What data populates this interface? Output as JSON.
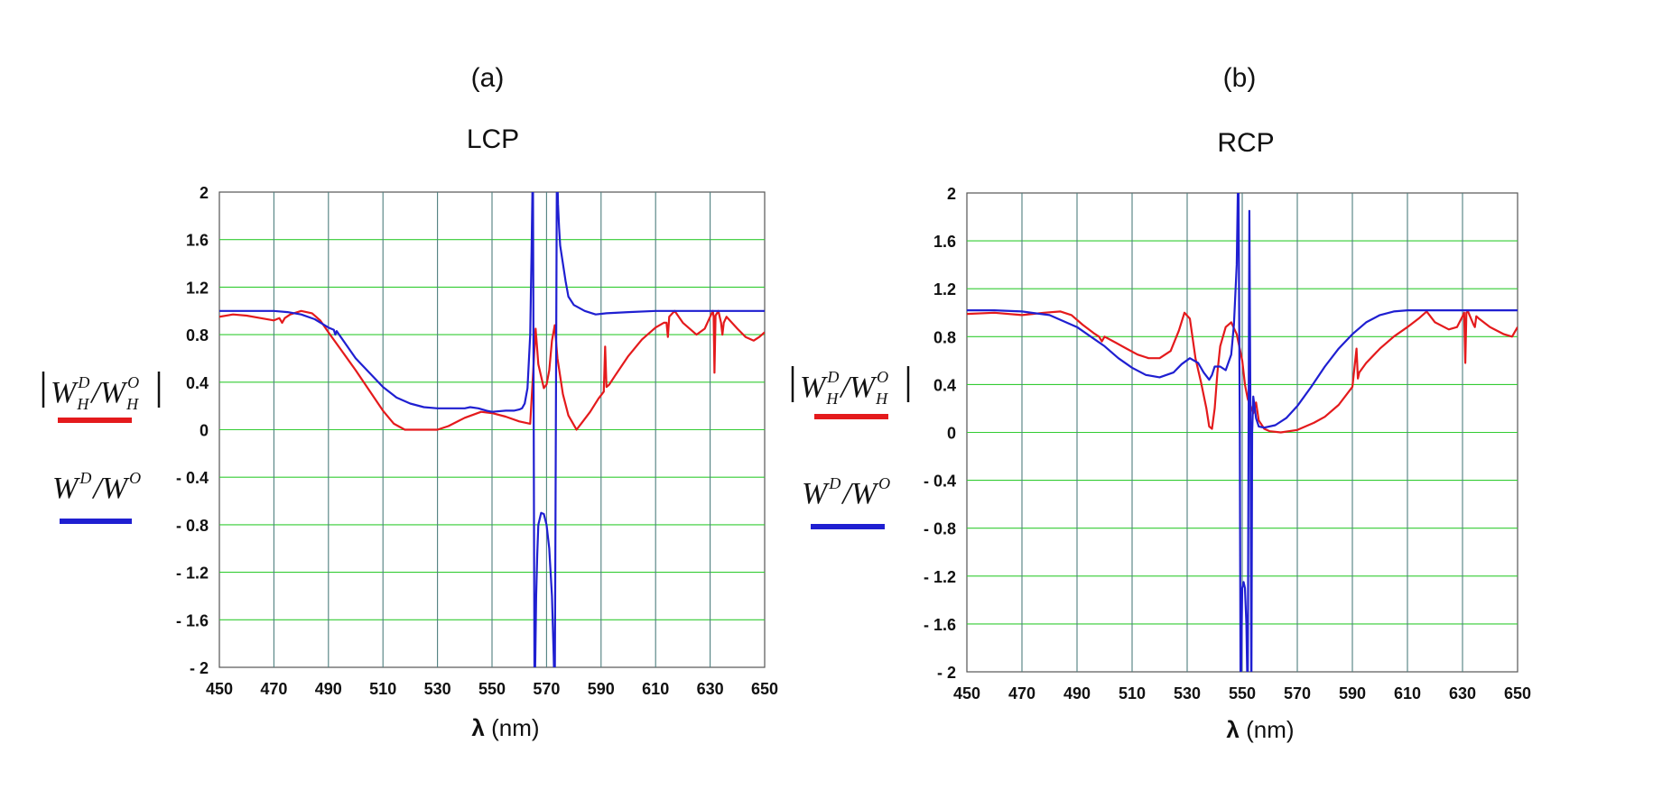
{
  "chart_data": [
    {
      "id": "a",
      "type": "line",
      "panel_label": "(a)",
      "title": "LCP",
      "xlabel_symbol": "λ",
      "xlabel_unit": "(nm)",
      "xlim": [
        450,
        650
      ],
      "ylim": [
        -2,
        2
      ],
      "xticks": [
        450,
        470,
        490,
        510,
        530,
        550,
        570,
        590,
        610,
        630,
        650
      ],
      "xtick_labels": [
        "450",
        "470",
        "490",
        "510",
        "530",
        "550",
        "570",
        "590",
        "610",
        "630",
        "650"
      ],
      "yticks": [
        2,
        1.6,
        1.2,
        0.8,
        0.4,
        0,
        -0.4,
        -0.8,
        -1.2,
        -1.6,
        -2
      ],
      "ytick_labels": [
        "2",
        "1.6",
        "1.2",
        "0.8",
        "0.4",
        "0",
        "- 0.4",
        "- 0.8",
        "- 1.2",
        "- 1.6",
        "- 2"
      ],
      "grid": true,
      "legend": [
        {
          "text": "|W_H^D/W_H^O|",
          "color": "#e41a1c",
          "series": "red"
        },
        {
          "text": "W^D/W^O",
          "color": "#1f1fd1",
          "series": "blue"
        }
      ],
      "series": [
        {
          "name": "|W_H^D/W_H^O|",
          "color": "#e41a1c",
          "x": [
            450,
            455,
            460,
            465,
            470,
            472,
            473,
            474,
            476,
            480,
            484,
            487,
            490,
            495,
            500,
            505,
            510,
            514,
            518,
            522,
            526,
            530,
            534,
            540,
            546,
            550,
            555,
            560,
            564,
            565,
            566,
            567,
            569,
            570,
            571,
            572,
            573,
            574,
            576,
            578,
            580,
            581,
            583,
            586,
            589,
            591,
            591.5,
            592,
            592.5,
            593,
            595,
            600,
            605,
            610,
            613,
            614,
            614.5,
            615,
            617,
            620,
            625,
            628,
            630,
            631,
            631.3,
            631.6,
            632,
            633,
            634,
            634.5,
            635,
            636,
            640,
            643,
            646,
            648,
            650
          ],
          "values": [
            0.95,
            0.97,
            0.96,
            0.94,
            0.92,
            0.94,
            0.9,
            0.94,
            0.97,
            1.0,
            0.98,
            0.92,
            0.82,
            0.66,
            0.5,
            0.33,
            0.16,
            0.05,
            0.0,
            0.0,
            0.0,
            0.0,
            0.03,
            0.1,
            0.15,
            0.14,
            0.11,
            0.07,
            0.05,
            0.45,
            0.85,
            0.55,
            0.35,
            0.38,
            0.5,
            0.75,
            0.88,
            0.6,
            0.3,
            0.12,
            0.04,
            0.0,
            0.06,
            0.15,
            0.26,
            0.32,
            0.7,
            0.36,
            0.37,
            0.38,
            0.45,
            0.62,
            0.76,
            0.86,
            0.9,
            0.9,
            0.78,
            0.95,
            1.0,
            0.9,
            0.8,
            0.85,
            0.95,
            1.0,
            0.95,
            0.48,
            0.96,
            1.0,
            0.9,
            0.8,
            0.9,
            0.95,
            0.85,
            0.78,
            0.75,
            0.78,
            0.82
          ]
        },
        {
          "name": "W^D/W^O",
          "color": "#1f1fd1",
          "x": [
            450,
            460,
            470,
            475,
            480,
            485,
            490,
            492,
            492.5,
            493,
            500,
            505,
            510,
            515,
            520,
            525,
            530,
            535,
            540,
            542,
            545,
            548,
            550,
            555,
            558,
            560,
            561,
            562,
            563,
            564,
            564.5,
            565,
            565.3,
            565.6,
            565.9,
            566.2,
            566.6,
            567,
            568,
            569,
            570,
            571,
            572,
            572.6,
            573,
            573.4,
            573.8,
            574.2,
            574.6,
            575,
            576,
            577,
            578,
            580,
            584,
            588,
            592,
            600,
            610,
            620,
            630,
            640,
            650
          ],
          "values": [
            1.0,
            1.0,
            1.0,
            0.99,
            0.97,
            0.93,
            0.86,
            0.84,
            0.8,
            0.83,
            0.6,
            0.48,
            0.36,
            0.27,
            0.22,
            0.19,
            0.18,
            0.18,
            0.18,
            0.19,
            0.18,
            0.16,
            0.15,
            0.16,
            0.16,
            0.17,
            0.18,
            0.22,
            0.35,
            0.8,
            1.5,
            2.3,
            0.0,
            -2.3,
            -1.9,
            -1.4,
            -1.05,
            -0.8,
            -0.7,
            -0.71,
            -0.8,
            -1.0,
            -1.4,
            -1.9,
            -2.3,
            0.0,
            2.3,
            1.9,
            1.7,
            1.55,
            1.4,
            1.25,
            1.12,
            1.05,
            1.0,
            0.97,
            0.98,
            0.99,
            1.0,
            1.0,
            1.0,
            1.0,
            1.0
          ]
        }
      ]
    },
    {
      "id": "b",
      "type": "line",
      "panel_label": "(b)",
      "title": "RCP",
      "xlabel_symbol": "λ",
      "xlabel_unit": "(nm)",
      "xlim": [
        450,
        650
      ],
      "ylim": [
        -2,
        2
      ],
      "xticks": [
        450,
        470,
        490,
        510,
        530,
        550,
        570,
        590,
        610,
        630,
        650
      ],
      "xtick_labels": [
        "450",
        "470",
        "490",
        "510",
        "530",
        "550",
        "570",
        "590",
        "610",
        "630",
        "650"
      ],
      "yticks": [
        2,
        1.6,
        1.2,
        0.8,
        0.4,
        0,
        -0.4,
        -0.8,
        -1.2,
        -1.6,
        -2
      ],
      "ytick_labels": [
        "2",
        "1.6",
        "1.2",
        "0.8",
        "0.4",
        "0",
        "- 0.4",
        "- 0.8",
        "- 1.2",
        "- 1.6",
        "- 2"
      ],
      "grid": true,
      "legend": [
        {
          "text": "|W_H^D/W_H^O|",
          "color": "#e41a1c",
          "series": "red"
        },
        {
          "text": "W^D/W^O",
          "color": "#1f1fd1",
          "series": "blue"
        }
      ],
      "series": [
        {
          "name": "|W_H^D/W_H^O|",
          "color": "#e41a1c",
          "x": [
            450,
            460,
            470,
            478,
            484,
            488,
            492,
            496,
            498,
            499,
            500,
            504,
            508,
            512,
            516,
            520,
            524,
            527,
            529,
            531,
            533,
            535,
            537,
            538,
            539,
            540,
            541,
            542,
            544,
            546,
            548,
            550,
            551,
            552,
            553,
            554,
            555,
            556,
            558,
            560,
            564,
            570,
            576,
            580,
            585,
            590,
            591.5,
            592,
            592.5,
            595,
            600,
            605,
            610,
            614,
            617,
            620,
            625,
            628,
            630,
            630.6,
            631,
            631.4,
            632,
            634,
            634.5,
            635,
            636,
            640,
            645,
            648,
            650
          ],
          "values": [
            0.99,
            1.0,
            0.98,
            1.0,
            1.01,
            0.98,
            0.9,
            0.83,
            0.8,
            0.76,
            0.8,
            0.75,
            0.7,
            0.65,
            0.62,
            0.62,
            0.68,
            0.85,
            1.0,
            0.95,
            0.62,
            0.42,
            0.2,
            0.05,
            0.03,
            0.2,
            0.5,
            0.72,
            0.88,
            0.92,
            0.82,
            0.6,
            0.4,
            0.28,
            0.22,
            0.16,
            0.25,
            0.1,
            0.03,
            0.01,
            0.0,
            0.02,
            0.08,
            0.13,
            0.23,
            0.38,
            0.7,
            0.45,
            0.5,
            0.58,
            0.7,
            0.8,
            0.88,
            0.95,
            1.01,
            0.92,
            0.86,
            0.88,
            0.97,
            1.0,
            0.58,
            1.0,
            1.01,
            0.9,
            0.88,
            0.97,
            0.95,
            0.88,
            0.82,
            0.8,
            0.88
          ]
        },
        {
          "name": "W^D/W^O",
          "color": "#1f1fd1",
          "x": [
            450,
            460,
            470,
            480,
            490,
            500,
            505,
            510,
            515,
            520,
            525,
            528,
            531,
            534,
            536,
            538,
            539,
            540,
            542,
            544,
            546,
            547,
            548,
            548.6,
            549.1,
            549.4,
            549.7,
            550,
            550.5,
            551,
            551.5,
            552,
            552.3,
            552.6,
            553,
            553.3,
            553.6,
            554,
            555,
            556,
            558,
            562,
            566,
            570,
            575,
            580,
            585,
            590,
            595,
            600,
            605,
            610,
            615,
            620,
            630,
            640,
            650
          ],
          "values": [
            1.02,
            1.02,
            1.01,
            0.98,
            0.88,
            0.72,
            0.62,
            0.54,
            0.48,
            0.46,
            0.5,
            0.57,
            0.62,
            0.58,
            0.5,
            0.44,
            0.48,
            0.55,
            0.55,
            0.52,
            0.65,
            0.9,
            1.4,
            2.3,
            0.0,
            -2.3,
            -1.8,
            -1.3,
            -1.25,
            -1.3,
            -1.6,
            -2.3,
            0.0,
            1.85,
            0.0,
            -2.3,
            0.0,
            0.3,
            0.12,
            0.05,
            0.04,
            0.06,
            0.12,
            0.22,
            0.38,
            0.55,
            0.7,
            0.82,
            0.92,
            0.98,
            1.01,
            1.02,
            1.02,
            1.02,
            1.02,
            1.02,
            1.02
          ]
        }
      ]
    }
  ]
}
